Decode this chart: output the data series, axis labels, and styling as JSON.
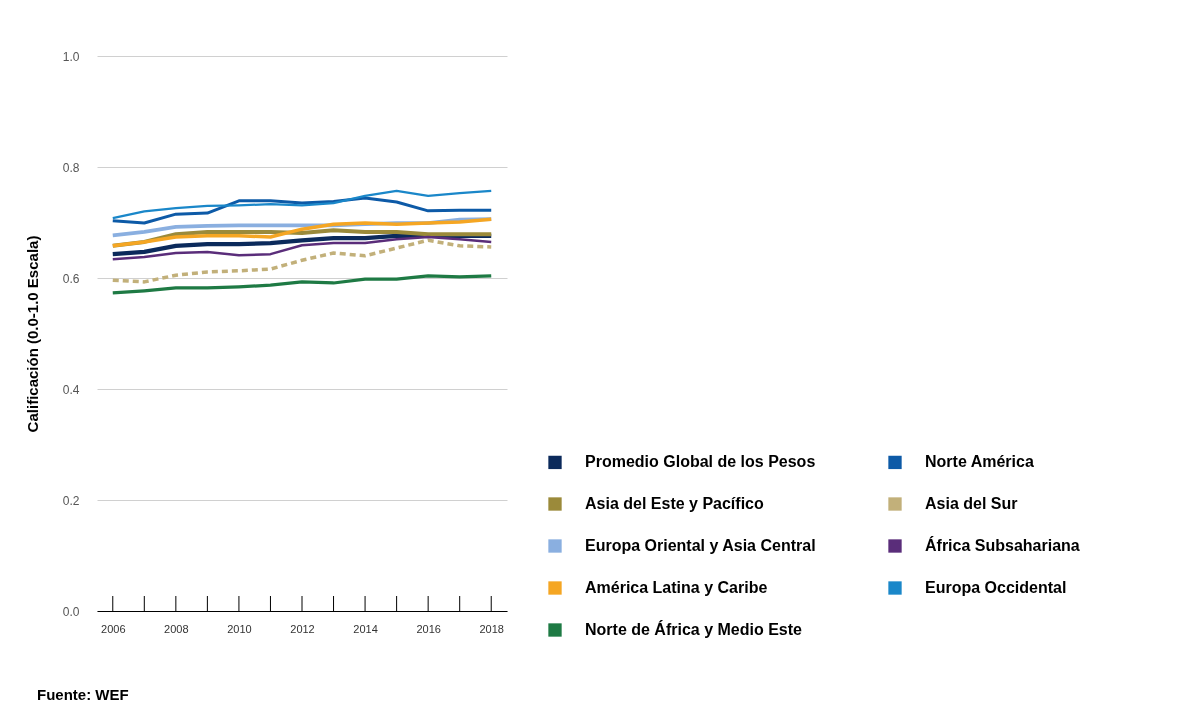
{
  "chart_data": {
    "type": "line",
    "ylabel": "Calificación (0.0-1.0 Escala)",
    "x": [
      2006,
      2007,
      2008,
      2009,
      2010,
      2011,
      2012,
      2013,
      2014,
      2015,
      2016,
      2017,
      2018
    ],
    "xlim": [
      2005.5,
      2018.5
    ],
    "xticks": [
      2006,
      {
        "value": 2007,
        "label": null
      },
      2008,
      {
        "value": 2009,
        "label": null
      },
      2010,
      {
        "value": 2011,
        "label": null
      },
      2012,
      {
        "value": 2013,
        "label": null
      },
      2014,
      {
        "value": 2015,
        "label": null
      },
      2016,
      {
        "value": 2017,
        "label": null
      },
      2018
    ],
    "ylim": [
      0,
      1
    ],
    "yticks": [
      {
        "value": 0,
        "label": "0.0"
      },
      {
        "value": 0.2,
        "label": "0.2"
      },
      {
        "value": 0.4,
        "label": "0.4"
      },
      {
        "value": 0.6,
        "label": "0.6"
      },
      {
        "value": 0.8,
        "label": "0.8"
      },
      {
        "value": 1,
        "label": "1.0"
      }
    ],
    "grid": "y",
    "legend": "right",
    "marker": "none",
    "series": [
      {
        "name": "Promedio Global de los Pesos",
        "color": "#0b2a5b",
        "values": [
          0.643,
          0.647,
          0.658,
          0.661,
          0.661,
          0.663,
          0.668,
          0.672,
          0.672,
          0.676,
          0.676,
          0.676,
          0.676
        ]
      },
      {
        "name": "Asia del Este y Pacífico",
        "color": "#9b8a3a",
        "values": [
          0.658,
          0.665,
          0.679,
          0.683,
          0.683,
          0.683,
          0.681,
          0.686,
          0.683,
          0.683,
          0.679,
          0.679,
          0.679
        ]
      },
      {
        "name": "Europa Oriental y Asia Central",
        "color": "#8aafe0",
        "values": [
          0.677,
          0.683,
          0.692,
          0.694,
          0.695,
          0.695,
          0.695,
          0.695,
          0.697,
          0.699,
          0.699,
          0.705,
          0.706
        ]
      },
      {
        "name": "América Latina y Caribe",
        "color": "#f5a623",
        "values": [
          0.658,
          0.665,
          0.674,
          0.676,
          0.676,
          0.674,
          0.688,
          0.697,
          0.699,
          0.697,
          0.699,
          0.701,
          0.706
        ]
      },
      {
        "name": "Norte de África y Medio Este",
        "color": "#1e7a44",
        "values": [
          0.573,
          0.577,
          0.582,
          0.582,
          0.584,
          0.587,
          0.593,
          0.591,
          0.598,
          0.598,
          0.604,
          0.602,
          0.604
        ]
      },
      {
        "name": "Norte América",
        "color": "#0d5aa7",
        "values": [
          0.703,
          0.699,
          0.715,
          0.717,
          0.739,
          0.739,
          0.735,
          0.738,
          0.744,
          0.737,
          0.721,
          0.722,
          0.722
        ]
      },
      {
        "name": "Asia del Sur",
        "color": "#c2b07a",
        "line_style": "dashed",
        "values": [
          0.596,
          0.593,
          0.605,
          0.611,
          0.613,
          0.616,
          0.632,
          0.645,
          0.64,
          0.654,
          0.668,
          0.658,
          0.656
        ]
      },
      {
        "name": "África Subsahariana",
        "color": "#5a2d7a",
        "values": [
          0.634,
          0.638,
          0.645,
          0.647,
          0.641,
          0.643,
          0.659,
          0.663,
          0.663,
          0.67,
          0.674,
          0.67,
          0.665
        ]
      },
      {
        "name": "Europa Occidental",
        "color": "#1a87c9",
        "values": [
          0.708,
          0.72,
          0.726,
          0.73,
          0.731,
          0.733,
          0.731,
          0.735,
          0.748,
          0.757,
          0.748,
          0.753,
          0.757
        ]
      }
    ],
    "annotations": [
      "Fuente: WEF"
    ]
  }
}
